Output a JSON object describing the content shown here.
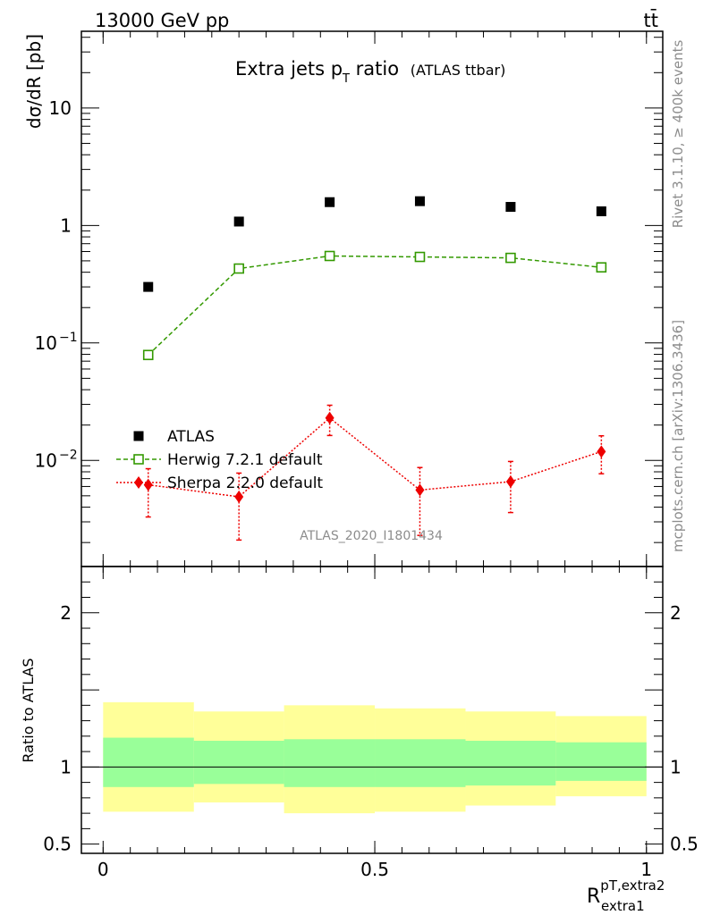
{
  "header": {
    "energy_label": "13000 GeV pp",
    "process_label": "tt̄"
  },
  "side": {
    "rivet_label": "Rivet 3.1.10, ≥ 400k events",
    "mcplots_label": "mcplots.cern.ch [arXiv:1306.3436]"
  },
  "chart_data": {
    "type": "scatter",
    "title": "Extra jets p",
    "title_sub": "T",
    "title_rest": " ratio",
    "title_note": "(ATLAS ttbar)",
    "analysis_id": "ATLAS_2020_I1801434",
    "ylabel_main": "dσ/dR [pb]",
    "ylabel_ratio": "Ratio to ATLAS",
    "xlabel": "R",
    "xlabel_sup": "pT,extra2",
    "xlabel_sub": "extra1",
    "x_edges": [
      0.0,
      0.167,
      0.333,
      0.5,
      0.667,
      0.833,
      1.0
    ],
    "x": [
      0.083,
      0.25,
      0.417,
      0.583,
      0.75,
      0.917
    ],
    "xlim": [
      -0.04,
      1.03
    ],
    "ylim_main": [
      0.00125,
      45
    ],
    "yscale_main": "log",
    "ylim_ratio": [
      0.44,
      2.3
    ],
    "xticks": [
      {
        "v": 0,
        "label": "0"
      },
      {
        "v": 0.5,
        "label": "0.5"
      },
      {
        "v": 1,
        "label": "1"
      }
    ],
    "yticks_main": [
      {
        "v": 10,
        "label": "10",
        "sup": ""
      },
      {
        "v": 1,
        "label": "1",
        "sup": ""
      },
      {
        "v": 0.1,
        "label": "10",
        "sup": "−1"
      },
      {
        "v": 0.01,
        "label": "10",
        "sup": "−2"
      }
    ],
    "yticks_ratio": [
      {
        "v": 2,
        "label": "2"
      },
      {
        "v": 1,
        "label": "1"
      },
      {
        "v": 0.5,
        "label": "0.5"
      }
    ],
    "series": [
      {
        "name": "ATLAS",
        "color": "#000000",
        "marker": "square-filled",
        "values": [
          0.3,
          1.08,
          1.58,
          1.61,
          1.44,
          1.32
        ],
        "ratio_band_inner": [
          [
            0.87,
            1.19
          ],
          [
            0.89,
            1.17
          ],
          [
            0.87,
            1.18
          ],
          [
            0.87,
            1.18
          ],
          [
            0.88,
            1.17
          ],
          [
            0.91,
            1.16
          ]
        ],
        "ratio_band_outer": [
          [
            0.71,
            1.42
          ],
          [
            0.77,
            1.36
          ],
          [
            0.7,
            1.4
          ],
          [
            0.71,
            1.38
          ],
          [
            0.75,
            1.36
          ],
          [
            0.81,
            1.33
          ]
        ]
      },
      {
        "name": "Herwig 7.2.1 default",
        "color": "#339900",
        "marker": "square-open",
        "line": "dashed",
        "values": [
          0.079,
          0.43,
          0.55,
          0.54,
          0.53,
          0.44
        ]
      },
      {
        "name": "Sherpa 2.2.0 default",
        "color": "#ee0000",
        "marker": "diamond",
        "line": "dotted",
        "values": [
          0.0062,
          0.0049,
          0.023,
          0.0056,
          0.0066,
          0.0119
        ],
        "errors": [
          [
            0.0033,
            0.0085
          ],
          [
            0.0021,
            0.0078
          ],
          [
            0.0163,
            0.0295
          ],
          [
            0.0023,
            0.0087
          ],
          [
            0.0036,
            0.0098
          ],
          [
            0.0077,
            0.0162
          ]
        ]
      }
    ],
    "colors": {
      "band_outer": "#ffff99",
      "band_inner": "#99ff99"
    }
  }
}
